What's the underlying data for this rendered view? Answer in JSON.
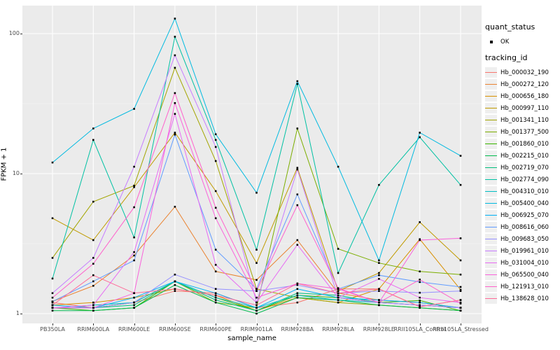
{
  "figure": {
    "background": "#FFFFFF",
    "panel_background": "#EBEBEB",
    "gridline_color": "#FFFFFF"
  },
  "axes": {
    "y_label": "FPKM + 1",
    "x_label": "sample_name",
    "y_ticks": [
      {
        "label": "100",
        "value": 100
      },
      {
        "label": "10",
        "value": 10
      },
      {
        "label": "1",
        "value": 1
      }
    ],
    "y_minor_values": [
      3.1623,
      31.623
    ]
  },
  "legend": {
    "quant_status_title": "quant_status",
    "quant_status_items": [
      {
        "label": "OK",
        "marker": "point"
      }
    ],
    "tracking_title": "tracking_id"
  },
  "chart_data": {
    "type": "line",
    "title": "",
    "xlabel": "sample_name",
    "ylabel": "FPKM + 1",
    "y_scale": "log10",
    "ylim": [
      0.85,
      158
    ],
    "grid": "on",
    "legend_position": "right",
    "point_color": "#000000",
    "categories": [
      "PB350LA",
      "RRIM600LA",
      "RRIM600LE",
      "RRIM600SE",
      "RRIM600PE",
      "RRIM901LA",
      "RRIM928BA",
      "RRIM928LA",
      "RRIM928LE",
      "RRII105LA_Control",
      "RRII105LA_Stressed"
    ],
    "series": [
      {
        "name": "Hb_000032_190",
        "color": "#F8766D",
        "values": [
          1.2,
          1.1,
          1.2,
          1.45,
          1.4,
          1.1,
          1.2,
          1.5,
          1.5,
          1.12,
          1.25
        ]
      },
      {
        "name": "Hb_000272_120",
        "color": "#EA8331",
        "values": [
          1.22,
          1.58,
          2.6,
          5.8,
          2.0,
          1.74,
          3.35,
          1.4,
          1.25,
          1.2,
          1.1
        ]
      },
      {
        "name": "Hb_000656_180",
        "color": "#D89000",
        "values": [
          1.15,
          1.2,
          1.3,
          1.5,
          1.35,
          1.05,
          1.3,
          1.2,
          1.5,
          3.4,
          1.48
        ]
      },
      {
        "name": "Hb_000997_110",
        "color": "#C09B00",
        "values": [
          4.8,
          3.35,
          8.0,
          19.6,
          7.5,
          2.3,
          11.0,
          1.45,
          1.95,
          4.5,
          2.4
        ]
      },
      {
        "name": "Hb_001341_110",
        "color": "#A3A500",
        "values": [
          2.5,
          6.3,
          8.2,
          57,
          12.3,
          1.5,
          1.3,
          1.2,
          1.15,
          1.1,
          1.05
        ]
      },
      {
        "name": "Hb_001377_500",
        "color": "#7CAE00",
        "values": [
          1.1,
          1.1,
          1.2,
          1.7,
          1.2,
          1.1,
          21,
          2.9,
          2.3,
          2.0,
          1.9
        ]
      },
      {
        "name": "Hb_001860_010",
        "color": "#39B600",
        "values": [
          1.1,
          1.05,
          1.1,
          1.7,
          1.3,
          1.05,
          1.35,
          1.3,
          1.2,
          1.24,
          1.05
        ]
      },
      {
        "name": "Hb_002215_010",
        "color": "#00BB4E",
        "values": [
          1.05,
          1.05,
          1.1,
          1.6,
          1.2,
          1.0,
          1.3,
          1.25,
          1.15,
          1.1,
          1.05
        ]
      },
      {
        "name": "Hb_002719_070",
        "color": "#00BF7D",
        "values": [
          1.1,
          1.1,
          1.15,
          1.7,
          1.25,
          1.05,
          1.4,
          1.35,
          1.2,
          1.15,
          1.1
        ]
      },
      {
        "name": "Hb_002774_090",
        "color": "#00C1A3",
        "values": [
          1.78,
          17.4,
          3.5,
          95,
          17.4,
          2.86,
          43.7,
          1.95,
          8.3,
          18.2,
          8.3
        ]
      },
      {
        "name": "Hb_004310_010",
        "color": "#00BFC4",
        "values": [
          1.1,
          1.15,
          1.2,
          1.7,
          1.3,
          1.1,
          1.35,
          1.25,
          1.2,
          1.15,
          1.1
        ]
      },
      {
        "name": "Hb_005400_040",
        "color": "#00BAE0",
        "values": [
          12,
          21,
          29,
          128,
          19.1,
          7.3,
          45.7,
          11.2,
          2.4,
          19.6,
          13.4
        ]
      },
      {
        "name": "Hb_006925_070",
        "color": "#00B0F6",
        "values": [
          1.15,
          1.1,
          1.3,
          1.7,
          1.4,
          1.1,
          1.5,
          1.3,
          1.25,
          1.2,
          1.1
        ]
      },
      {
        "name": "Hb_008616_060",
        "color": "#619CFF",
        "values": [
          1.22,
          1.7,
          2.4,
          19.0,
          2.86,
          1.5,
          7.1,
          1.5,
          1.88,
          1.68,
          1.55
        ]
      },
      {
        "name": "Hb_009683_050",
        "color": "#9590FF",
        "values": [
          1.1,
          1.1,
          1.2,
          1.9,
          1.5,
          1.45,
          1.6,
          1.4,
          1.45,
          1.41,
          1.45
        ]
      },
      {
        "name": "Hb_019961_010",
        "color": "#C77CFF",
        "values": [
          1.4,
          2.5,
          11.2,
          70,
          15.5,
          1.2,
          10.7,
          1.3,
          1.2,
          1.15,
          1.1
        ]
      },
      {
        "name": "Hb_031004_010",
        "color": "#E76BF3",
        "values": [
          1.1,
          1.15,
          2.75,
          26.7,
          2.23,
          1.2,
          3.1,
          1.3,
          1.77,
          1.3,
          1.2
        ]
      },
      {
        "name": "Hb_065500_040",
        "color": "#FA62DB",
        "values": [
          1.1,
          1.1,
          1.4,
          31.9,
          4.8,
          1.3,
          1.64,
          1.5,
          1.2,
          3.35,
          3.45
        ]
      },
      {
        "name": "Hb_121913_010",
        "color": "#FF61CC",
        "values": [
          1.3,
          2.27,
          5.75,
          37.6,
          5.7,
          1.45,
          5.95,
          1.52,
          1.2,
          1.75,
          1.18
        ]
      },
      {
        "name": "Hb_138628_010",
        "color": "#FF6A98",
        "values": [
          1.15,
          1.88,
          1.4,
          1.5,
          1.35,
          1.15,
          1.64,
          1.4,
          1.5,
          1.12,
          1.25
        ]
      }
    ]
  }
}
